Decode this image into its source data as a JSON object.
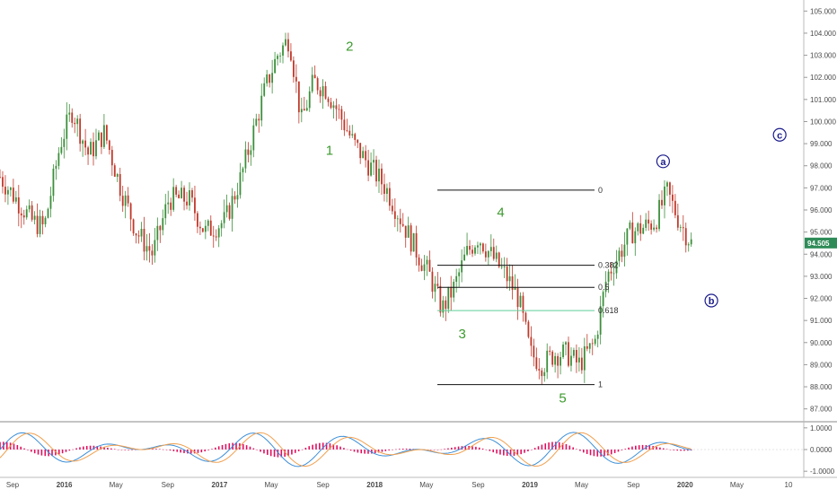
{
  "colors": {
    "up": "#3c8f3c",
    "down": "#c0392b",
    "wave_label": "#3c9a2e",
    "circle": "#1b1b8c",
    "fib_line": "#111111",
    "fib_golden": "#5fcf9a",
    "last_price_badge": "#2e8b57",
    "macd_line": "#3d8fd8",
    "signal_line": "#f0a050",
    "histogram": "#e0115f"
  },
  "chart_data": [
    {
      "type": "candlestick",
      "instrument_note": "",
      "y_axis": {
        "ylim": [
          86.5,
          105.5
        ],
        "ticks": [
          "105.000",
          "104.000",
          "103.000",
          "102.000",
          "101.000",
          "100.000",
          "99.000",
          "98.000",
          "97.000",
          "96.000",
          "95.000",
          "94.000",
          "93.000",
          "92.000",
          "91.000",
          "90.000",
          "89.000",
          "88.000",
          "87.000"
        ],
        "last_price": 94.505,
        "last_price_label": "94.505"
      },
      "x_axis": {
        "labels": [
          "Sep",
          "2016",
          "May",
          "Sep",
          "2017",
          "May",
          "Sep",
          "2018",
          "May",
          "Sep",
          "2019",
          "May",
          "Sep",
          "2020",
          "May",
          "10"
        ],
        "bold_labels": [
          "2016",
          "2017",
          "2018",
          "2019",
          "2020"
        ]
      },
      "price_path": [
        {
          "t": 0.0,
          "p": 97.5
        },
        {
          "t": 0.02,
          "p": 96.5
        },
        {
          "t": 0.04,
          "p": 95.5
        },
        {
          "t": 0.055,
          "p": 95.2
        },
        {
          "t": 0.075,
          "p": 99.0
        },
        {
          "t": 0.09,
          "p": 100.5
        },
        {
          "t": 0.11,
          "p": 98.5
        },
        {
          "t": 0.13,
          "p": 99.5
        },
        {
          "t": 0.15,
          "p": 97.0
        },
        {
          "t": 0.17,
          "p": 95.0
        },
        {
          "t": 0.19,
          "p": 94.0
        },
        {
          "t": 0.21,
          "p": 96.5
        },
        {
          "t": 0.235,
          "p": 96.5
        },
        {
          "t": 0.255,
          "p": 95.0
        },
        {
          "t": 0.28,
          "p": 95.5
        },
        {
          "t": 0.3,
          "p": 97.5
        },
        {
          "t": 0.33,
          "p": 101.5
        },
        {
          "t": 0.345,
          "p": 103.0
        },
        {
          "t": 0.36,
          "p": 103.8
        },
        {
          "t": 0.375,
          "p": 100.0
        },
        {
          "t": 0.39,
          "p": 101.8
        },
        {
          "t": 0.405,
          "p": 101.5
        },
        {
          "t": 0.42,
          "p": 100.5
        },
        {
          "t": 0.44,
          "p": 99.0
        },
        {
          "t": 0.46,
          "p": 98.0
        },
        {
          "t": 0.48,
          "p": 97.0
        },
        {
          "t": 0.5,
          "p": 95.5
        },
        {
          "t": 0.52,
          "p": 94.0
        },
        {
          "t": 0.535,
          "p": 93.0
        },
        {
          "t": 0.55,
          "p": 91.5
        },
        {
          "t": 0.565,
          "p": 92.5
        },
        {
          "t": 0.58,
          "p": 94.0
        },
        {
          "t": 0.595,
          "p": 94.8
        },
        {
          "t": 0.61,
          "p": 94.0
        },
        {
          "t": 0.63,
          "p": 93.0
        },
        {
          "t": 0.645,
          "p": 92.0
        },
        {
          "t": 0.66,
          "p": 89.5
        },
        {
          "t": 0.675,
          "p": 89.0
        },
        {
          "t": 0.69,
          "p": 89.5
        },
        {
          "t": 0.705,
          "p": 89.5
        },
        {
          "t": 0.72,
          "p": 89.0
        },
        {
          "t": 0.74,
          "p": 90.0
        },
        {
          "t": 0.755,
          "p": 93.0
        },
        {
          "t": 0.77,
          "p": 94.0
        },
        {
          "t": 0.785,
          "p": 95.0
        },
        {
          "t": 0.8,
          "p": 95.2
        },
        {
          "t": 0.815,
          "p": 95.5
        },
        {
          "t": 0.83,
          "p": 96.8
        },
        {
          "t": 0.845,
          "p": 95.5
        },
        {
          "t": 0.86,
          "p": 94.5
        }
      ],
      "wave_labels": [
        {
          "text": "1",
          "price": 98.5,
          "t": 0.41
        },
        {
          "text": "2",
          "price": 103.2,
          "t": 0.435
        },
        {
          "text": "3",
          "price": 90.2,
          "t": 0.575
        },
        {
          "text": "4",
          "price": 95.7,
          "t": 0.623
        },
        {
          "text": "5",
          "price": 87.3,
          "t": 0.7
        }
      ],
      "circled_labels": [
        {
          "text": "a",
          "price": 98.2,
          "t": 0.825
        },
        {
          "text": "b",
          "price": 91.9,
          "t": 0.885
        },
        {
          "text": "c",
          "price": 99.4,
          "t": 0.97
        }
      ],
      "fibonacci": [
        {
          "level": "0",
          "price": 96.9,
          "label": "0"
        },
        {
          "level": "0.382",
          "price": 93.5,
          "label": "0.382"
        },
        {
          "level": "0.5",
          "price": 92.5,
          "label": "0.5"
        },
        {
          "level": "0.618",
          "price": 91.45,
          "label": "0.618"
        },
        {
          "level": "1",
          "price": 88.1,
          "label": "1"
        }
      ]
    },
    {
      "type": "line",
      "indicator": "oscillator",
      "ylim": [
        -1.2,
        1.2
      ],
      "ticks": [
        "1.0000",
        "0.0000",
        "-1.0000"
      ],
      "series_colors": [
        "macd_line",
        "signal_line",
        "histogram"
      ]
    }
  ]
}
